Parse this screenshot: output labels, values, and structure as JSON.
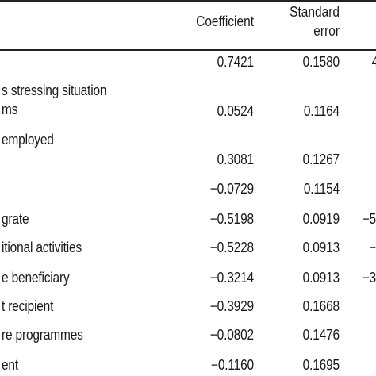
{
  "header": {
    "coefficient": "Coefficient",
    "standard_line1": "Standard",
    "standard_line2": "error"
  },
  "rows": [
    {
      "label_line1": "",
      "label_line2": "",
      "coef": "0.7421",
      "se": "0.1580",
      "extra": "4"
    },
    {
      "label_line1": "s stressing situation",
      "label_line2": "ms",
      "coef": "0.0524",
      "se": "0.1164",
      "extra": ""
    },
    {
      "label_line1": "employed",
      "label_line2": "",
      "coef": "0.3081",
      "se": "0.1267",
      "extra": ""
    },
    {
      "label_line1": "",
      "label_line2": "",
      "coef": "−0.0729",
      "se": "0.1154",
      "extra": ""
    },
    {
      "label_line1": "grate",
      "label_line2": "",
      "coef": "−0.5198",
      "se": "0.0919",
      "extra": "−5"
    },
    {
      "label_line1": "itional activities",
      "label_line2": "",
      "coef": "−0.5228",
      "se": "0.0913",
      "extra": "−"
    },
    {
      "label_line1": "e beneficiary",
      "label_line2": "",
      "coef": "−0.3214",
      "se": "0.0913",
      "extra": "−3"
    },
    {
      "label_line1": "t recipient",
      "label_line2": "",
      "coef": "−0.3929",
      "se": "0.1668",
      "extra": ""
    },
    {
      "label_line1": "re programmes",
      "label_line2": "",
      "coef": "−0.0802",
      "se": "0.1476",
      "extra": ""
    },
    {
      "label_line1": "ent",
      "label_line2": "",
      "coef": "−0.1160",
      "se": "0.1695",
      "extra": ""
    }
  ]
}
